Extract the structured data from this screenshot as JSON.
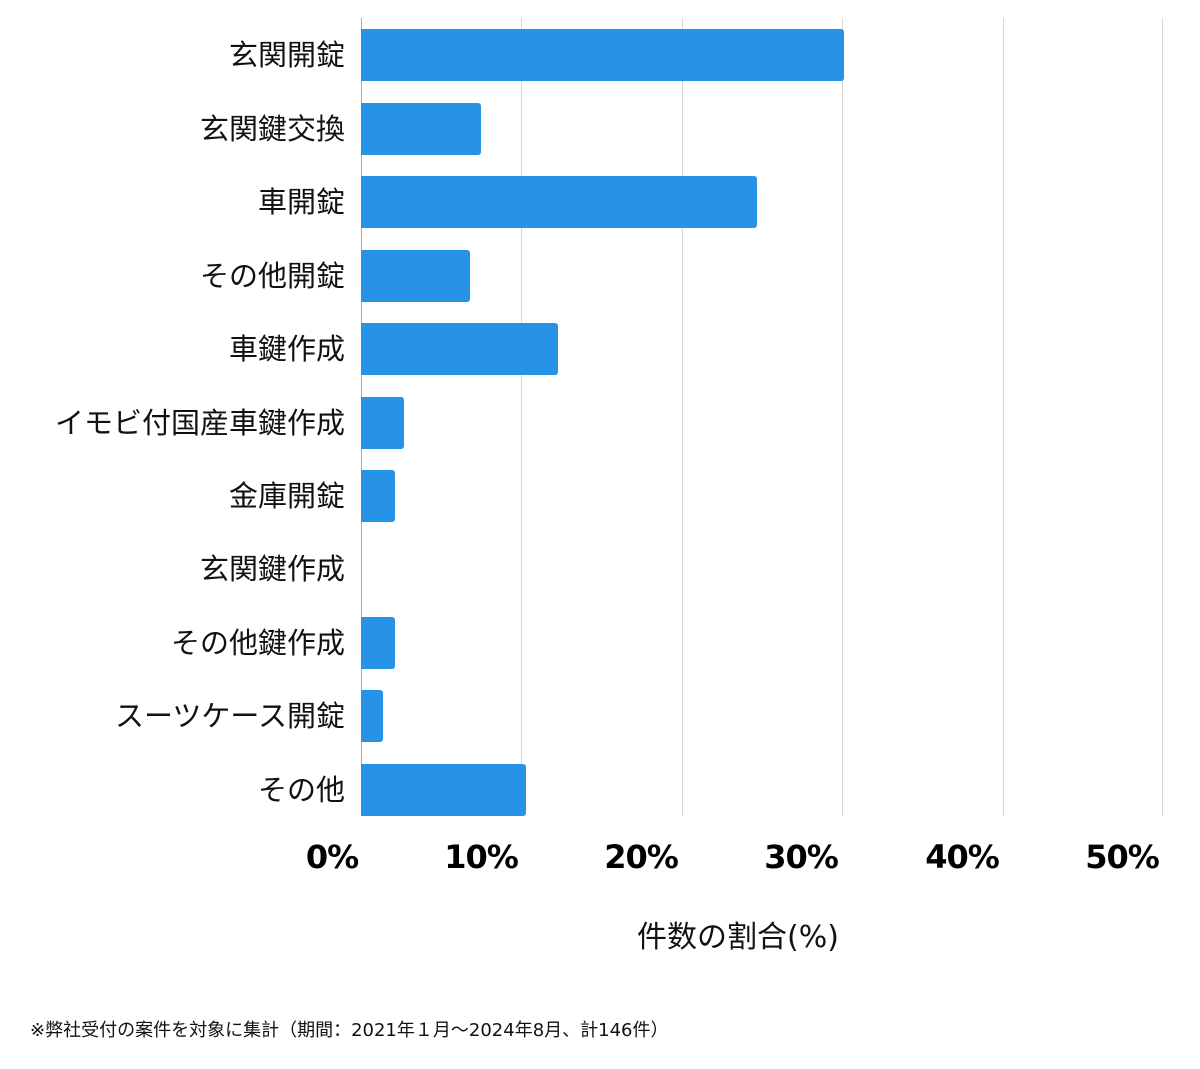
{
  "chart_data": {
    "type": "bar",
    "orientation": "horizontal",
    "title": "",
    "categories": [
      "玄関開錠",
      "玄関鍵交換",
      "車開錠",
      "その他開錠",
      "車鍵作成",
      "イモビ付国産車鍵作成",
      "金庫開錠",
      "玄関鍵作成",
      "その他鍵作成",
      "スーツケース開錠",
      "その他"
    ],
    "values": [
      30.1,
      7.5,
      24.7,
      6.8,
      12.3,
      2.7,
      2.1,
      0.0,
      2.1,
      1.4,
      10.3
    ],
    "xlabel": "件数の割合(%)",
    "ylabel": "",
    "xlim": [
      0,
      50
    ],
    "xticks": [
      "0%",
      "10%",
      "20%",
      "30%",
      "40%",
      "50%"
    ],
    "grid": true,
    "legend": null,
    "color": "#2693e6",
    "note": "※弊社受付の案件を対象に集計（期間：2021年１月〜2024年8月、計146件）"
  },
  "labels": {
    "xlabel": "件数の割合(%)",
    "note": "※弊社受付の案件を対象に集計（期間：2021年１月〜2024年8月、計146件）",
    "cat0": "玄関開錠",
    "cat1": "玄関鍵交換",
    "cat2": "車開錠",
    "cat3": "その他開錠",
    "cat4": "車鍵作成",
    "cat5": "イモビ付国産車鍵作成",
    "cat6": "金庫開錠",
    "cat7": "玄関鍵作成",
    "cat8": "その他鍵作成",
    "cat9": "スーツケース開錠",
    "cat10": "その他",
    "tick0": "0%",
    "tick1": "10%",
    "tick2": "20%",
    "tick3": "30%",
    "tick4": "40%",
    "tick5": "50%"
  }
}
